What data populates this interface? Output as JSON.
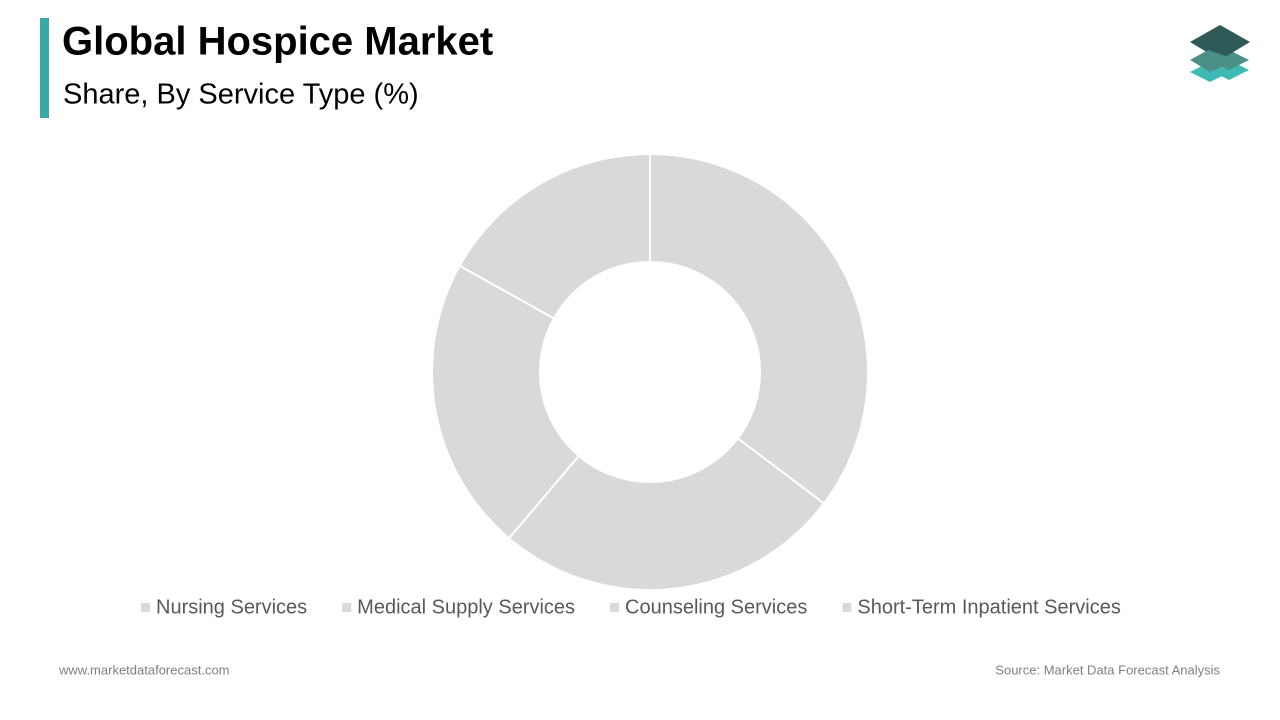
{
  "chart_data": {
    "type": "donut",
    "title": "Global Hospice Market",
    "subtitle": "Share, By Service Type (%)",
    "categories": [
      "Nursing Services",
      "Medical Supply Services",
      "Counseling Services",
      "Short-Term Inpatient Services"
    ],
    "values": [
      35.3,
      25.9,
      21.9,
      16.9
    ],
    "colors": [
      "#d9d9d9",
      "#d9d9d9",
      "#d9d9d9",
      "#d9d9d9"
    ],
    "legend": "bottom"
  },
  "footer": {
    "website": "www.marketdataforecast.com",
    "source": "Source: Market Data Forecast Analysis"
  }
}
